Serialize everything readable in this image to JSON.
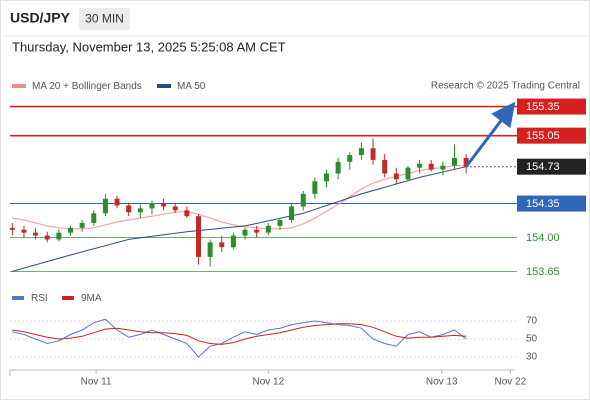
{
  "chart_data": {
    "type": "candlestick",
    "symbol": "USD/JPY",
    "timeframe": "30 MIN",
    "subtitle": "Thursday, November 13, 2025 5:25:08 AM CET",
    "credit": "Research © 2025 Trading Central",
    "xlim": [
      -0.2,
      43.2
    ],
    "xticks": [
      {
        "value": 7.2,
        "label": "Nov 11"
      },
      {
        "value": 22,
        "label": "Nov 12"
      },
      {
        "value": 36.9,
        "label": "Nov 13"
      },
      {
        "value": 42.8,
        "label": "Nov 22"
      }
    ],
    "ylim": [
      153.5,
      155.5
    ],
    "up_color": "#2e8b2e",
    "down_color": "#c62828",
    "candles": {
      "open": [
        154.1,
        154.08,
        154.05,
        154.02,
        153.98,
        154.05,
        154.1,
        154.15,
        154.25,
        154.4,
        154.33,
        154.26,
        154.3,
        154.35,
        154.32,
        154.28,
        154.22,
        153.8,
        153.95,
        153.9,
        154.02,
        154.08,
        154.05,
        154.12,
        154.18,
        154.32,
        154.45,
        154.58,
        154.66,
        154.78,
        154.85,
        154.92,
        154.8,
        154.66,
        154.6,
        154.72,
        154.76,
        154.7,
        154.74,
        154.82
      ],
      "high": [
        154.15,
        154.12,
        154.1,
        154.06,
        154.08,
        154.12,
        154.18,
        154.28,
        154.45,
        154.43,
        154.36,
        154.34,
        154.38,
        154.4,
        154.35,
        154.32,
        154.24,
        153.98,
        154.02,
        154.05,
        154.1,
        154.12,
        154.15,
        154.2,
        154.35,
        154.48,
        154.62,
        154.7,
        154.82,
        154.88,
        154.98,
        155.02,
        154.86,
        154.72,
        154.74,
        154.8,
        154.8,
        154.78,
        154.96,
        154.86
      ],
      "low": [
        154.02,
        154.0,
        153.98,
        153.95,
        153.96,
        154.02,
        154.06,
        154.12,
        154.22,
        154.3,
        154.22,
        154.2,
        154.24,
        154.28,
        154.25,
        154.2,
        153.72,
        153.7,
        153.85,
        153.88,
        153.98,
        154.0,
        154.02,
        154.08,
        154.15,
        154.28,
        154.4,
        154.52,
        154.6,
        154.7,
        154.8,
        154.75,
        154.62,
        154.55,
        154.58,
        154.66,
        154.68,
        154.64,
        154.7,
        154.66
      ],
      "close": [
        154.08,
        154.05,
        154.02,
        153.98,
        154.05,
        154.1,
        154.15,
        154.25,
        154.4,
        154.33,
        154.26,
        154.3,
        154.35,
        154.32,
        154.28,
        154.22,
        153.8,
        153.95,
        153.9,
        154.02,
        154.08,
        154.05,
        154.12,
        154.18,
        154.32,
        154.45,
        154.58,
        154.66,
        154.78,
        154.85,
        154.92,
        154.8,
        154.66,
        154.6,
        154.72,
        154.76,
        154.7,
        154.74,
        154.82,
        154.73
      ]
    },
    "series": [
      {
        "name": "MA 20 + Bollinger Bands",
        "color": "#f08c8c",
        "values": [
          154.2,
          154.18,
          154.15,
          154.12,
          154.1,
          154.09,
          154.09,
          154.1,
          154.13,
          154.16,
          154.18,
          154.2,
          154.22,
          154.24,
          154.26,
          154.27,
          154.24,
          154.2,
          154.16,
          154.13,
          154.11,
          154.1,
          154.09,
          154.09,
          154.1,
          154.14,
          154.2,
          154.27,
          154.34,
          154.42,
          154.5,
          154.56,
          154.6,
          154.63,
          154.66,
          154.69,
          154.71,
          154.72,
          154.74,
          154.74
        ]
      },
      {
        "name": "MA 50",
        "color": "#2b4c7e",
        "x": [
          0,
          5,
          10,
          15,
          20,
          25,
          30,
          35,
          39
        ],
        "values": [
          153.65,
          153.82,
          153.98,
          154.06,
          154.12,
          154.25,
          154.45,
          154.62,
          154.73
        ]
      }
    ],
    "levels": [
      {
        "value": 155.35,
        "color": "#d62020",
        "box": true
      },
      {
        "value": 155.05,
        "color": "#d62020",
        "box": true
      },
      {
        "value": 154.73,
        "color": "#222222",
        "box": true,
        "dotted": true
      },
      {
        "value": 154.35,
        "color": "#2f66b8",
        "box": true
      },
      {
        "value": {
          "value": 154,
          "label": "154.00"
        },
        "color": "#3a8a3a",
        "box": false
      },
      {
        "value": 153.65,
        "color": "#3a8a3a",
        "box": false
      }
    ],
    "projection": {
      "x": [
        39,
        42.6
      ],
      "values": [
        154.73,
        155.3
      ],
      "color": "#2f66b8"
    },
    "rsi": {
      "ylim": [
        20,
        80
      ],
      "yticks": [
        30,
        50,
        70
      ],
      "series": [
        {
          "name": "RSI",
          "color": "#5577cc",
          "values": [
            58,
            55,
            50,
            45,
            48,
            55,
            60,
            68,
            72,
            60,
            52,
            55,
            60,
            55,
            50,
            45,
            30,
            42,
            45,
            52,
            58,
            55,
            60,
            62,
            66,
            68,
            70,
            68,
            66,
            65,
            62,
            50,
            45,
            42,
            55,
            58,
            52,
            55,
            60,
            50
          ]
        },
        {
          "name": "9MA",
          "color": "#cc2222",
          "values": [
            60,
            58,
            55,
            52,
            50,
            51,
            53,
            57,
            61,
            62,
            60,
            58,
            57,
            57,
            56,
            54,
            48,
            45,
            44,
            46,
            50,
            53,
            55,
            57,
            60,
            63,
            65,
            66,
            67,
            67,
            66,
            63,
            58,
            53,
            51,
            52,
            52,
            53,
            54,
            53
          ]
        }
      ]
    }
  }
}
